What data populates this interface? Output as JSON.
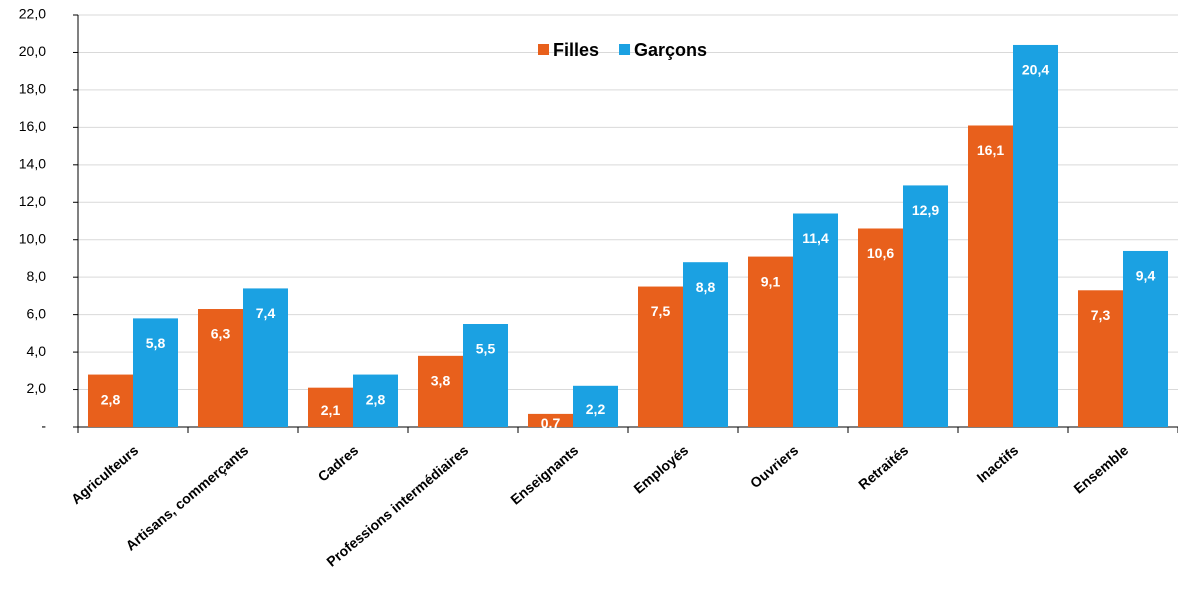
{
  "chart_data": {
    "type": "bar",
    "categories": [
      "Agriculteurs",
      "Artisans, commerçants",
      "Cadres",
      "Professions intermédiaires",
      "Enseignants",
      "Employés",
      "Ouvriers",
      "Retraités",
      "Inactifs",
      "Ensemble"
    ],
    "series": [
      {
        "name": "Filles",
        "color": "#e8601c",
        "values": [
          2.8,
          6.3,
          2.1,
          3.8,
          0.7,
          7.5,
          9.1,
          10.6,
          16.1,
          7.3
        ],
        "value_labels": [
          "2,8",
          "6,3",
          "2,1",
          "3,8",
          "0,7",
          "7,5",
          "9,1",
          "10,6",
          "16,1",
          "7,3"
        ]
      },
      {
        "name": "Garçons",
        "color": "#1ba1e2",
        "values": [
          5.8,
          7.4,
          2.8,
          5.5,
          2.2,
          8.8,
          11.4,
          12.9,
          20.4,
          9.4
        ],
        "value_labels": [
          "5,8",
          "7,4",
          "2,8",
          "5,5",
          "2,2",
          "8,8",
          "11,4",
          "12,9",
          "20,4",
          "9,4"
        ]
      }
    ],
    "ylim": [
      0,
      22
    ],
    "yticks": [
      {
        "value": 0,
        "label": "-"
      },
      {
        "value": 2,
        "label": "2,0"
      },
      {
        "value": 4,
        "label": "4,0"
      },
      {
        "value": 6,
        "label": "6,0"
      },
      {
        "value": 8,
        "label": "8,0"
      },
      {
        "value": 10,
        "label": "10,0"
      },
      {
        "value": 12,
        "label": "12,0"
      },
      {
        "value": 14,
        "label": "14,0"
      },
      {
        "value": 16,
        "label": "16,0"
      },
      {
        "value": 18,
        "label": "18,0"
      },
      {
        "value": 20,
        "label": "20,0"
      },
      {
        "value": 22,
        "label": "22,0"
      }
    ],
    "grid": true,
    "legend": "top"
  }
}
